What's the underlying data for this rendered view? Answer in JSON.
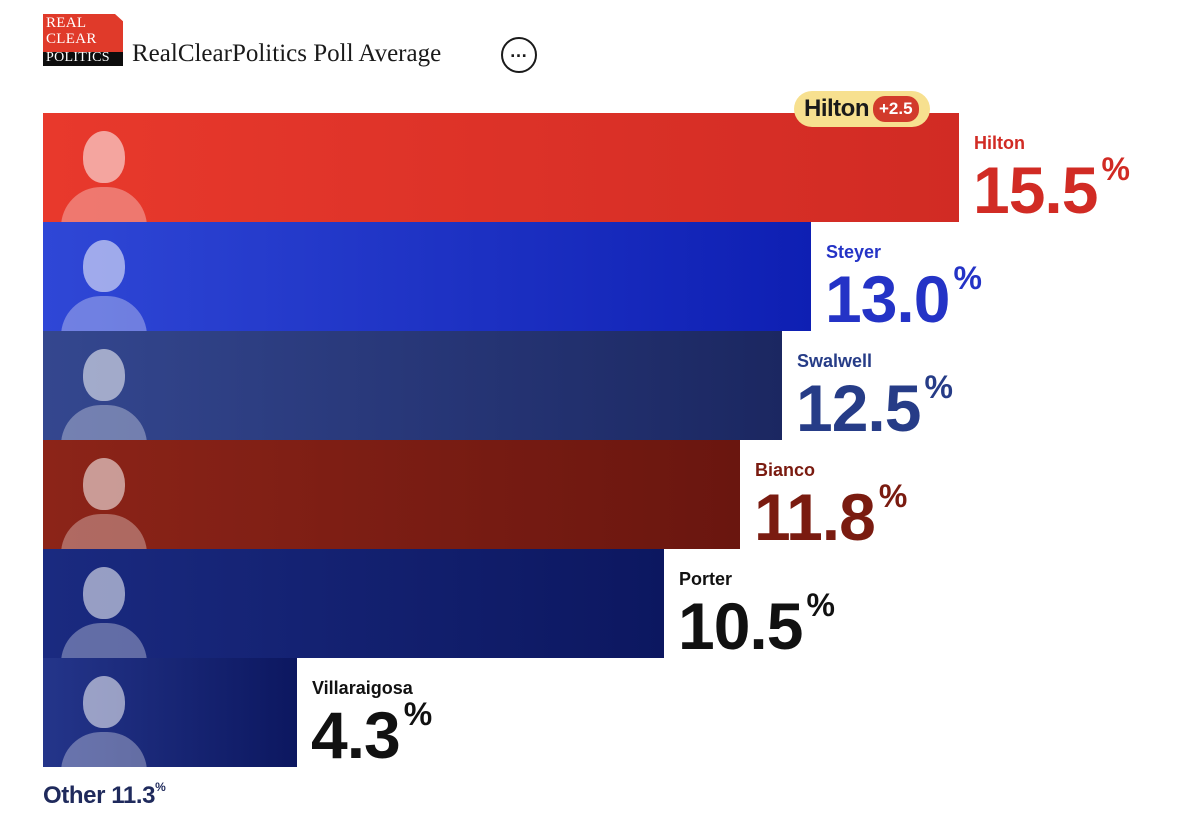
{
  "header": {
    "logo_lines": [
      "REAL",
      "CLEAR",
      "POLITICS"
    ],
    "title": "RealClearPolitics Poll Average",
    "more_icon": "ellipsis-icon"
  },
  "leader_badge": {
    "name": "Hilton",
    "delta": "+2.5",
    "color": "#f7e08f"
  },
  "chart_data": {
    "type": "bar",
    "orientation": "horizontal",
    "title": "RealClearPolitics Poll Average",
    "xlim": [
      0,
      20
    ],
    "categories": [
      "Hilton",
      "Steyer",
      "Swalwell",
      "Bianco",
      "Porter",
      "Villaraigosa"
    ],
    "values": [
      15.5,
      13.0,
      12.5,
      11.8,
      10.5,
      4.3
    ],
    "value_labels": [
      "15.5",
      "13.0",
      "12.5",
      "11.8",
      "10.5",
      "4.3"
    ],
    "unit": "%",
    "colors": {
      "bar_start": [
        "#e8392c",
        "#2f47d6",
        "#34478f",
        "#8c2418",
        "#1a2a80",
        "#24358a"
      ],
      "bar_end": [
        "#d12b24",
        "#0e1fb3",
        "#1b2761",
        "#6a160f",
        "#0c1760",
        "#0c1760"
      ],
      "label": [
        "#d12b24",
        "#2433c6",
        "#263c87",
        "#7a1b10",
        "#111111",
        "#111111"
      ]
    },
    "other": {
      "label": "Other",
      "value": "11.3",
      "unit": "%"
    }
  }
}
